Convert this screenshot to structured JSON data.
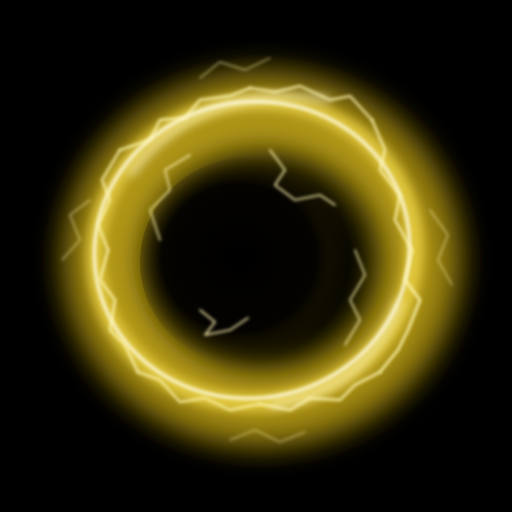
{
  "scene": {
    "subject": "electric-ring",
    "colors": {
      "background": "#000000",
      "glow_outer": "#6b5a00",
      "glow_mid": "#b59a10",
      "glow_bright": "#f2d84a",
      "core_white": "#fffbe0",
      "bolt": "#fff6b0",
      "center_dark": "#050300"
    }
  }
}
